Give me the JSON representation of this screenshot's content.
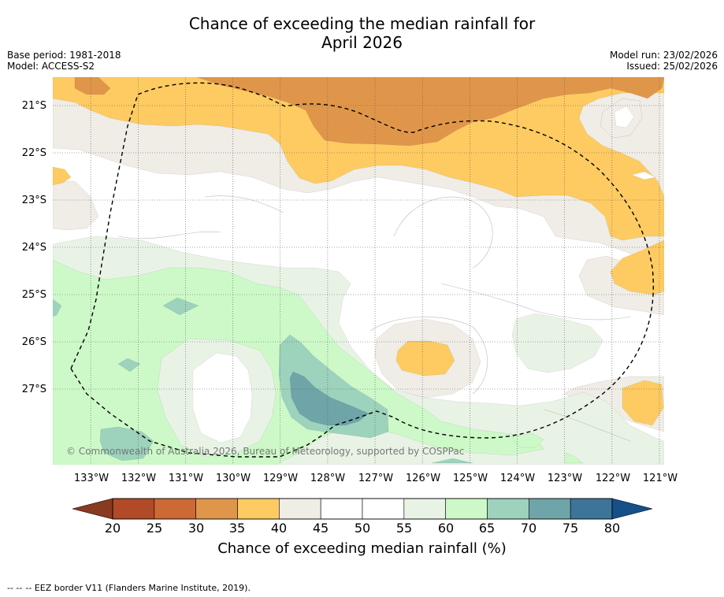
{
  "title": {
    "line1": "Chance of exceeding the median rainfall for",
    "line2": "April 2026"
  },
  "meta": {
    "base_period": "Base period: 1981-2018",
    "model": "Model: ACCESS-S2",
    "model_run": "Model run: 23/02/2026",
    "issued": "Issued: 25/02/2026"
  },
  "map": {
    "lat_labels": [
      "21°S",
      "22°S",
      "23°S",
      "24°S",
      "25°S",
      "26°S",
      "27°S"
    ],
    "lon_labels": [
      "133°W",
      "132°W",
      "131°W",
      "130°W",
      "129°W",
      "128°W",
      "127°W",
      "126°W",
      "125°W",
      "124°W",
      "123°W",
      "122°W",
      "121°W"
    ],
    "copyright": "© Commonwealth of Australia 2026, Bureau of Meteorology, supported by COSPPac",
    "extent": {
      "lon_west": -133.8,
      "lon_east": -120.9,
      "lat_north": -20.4,
      "lat_south": -28.6
    }
  },
  "colorbar": {
    "title": "Chance of exceeding median rainfall (%)",
    "labels": [
      "20",
      "25",
      "30",
      "35",
      "40",
      "45",
      "50",
      "55",
      "60",
      "65",
      "70",
      "75",
      "80"
    ],
    "colors": {
      "below20": "#8a3a20",
      "c20_25": "#b14a26",
      "c25_30": "#cd6934",
      "c30_35": "#e0964a",
      "c35_40": "#fdcb62",
      "c40_45": "#f0ece6",
      "c45_50": "#ffffff",
      "c50_55": "#ffffff",
      "c55_60": "#e8f3e6",
      "c60_65": "#cdf9c8",
      "c65_70": "#9dd2bd",
      "c70_75": "#6fa5a8",
      "c75_80": "#3d7598",
      "above80": "#15508a"
    }
  },
  "footer": {
    "legend_text": "-- EEZ border V11 (Flanders Marine Institute, 2019).",
    "legend_symbol": "--  --"
  }
}
